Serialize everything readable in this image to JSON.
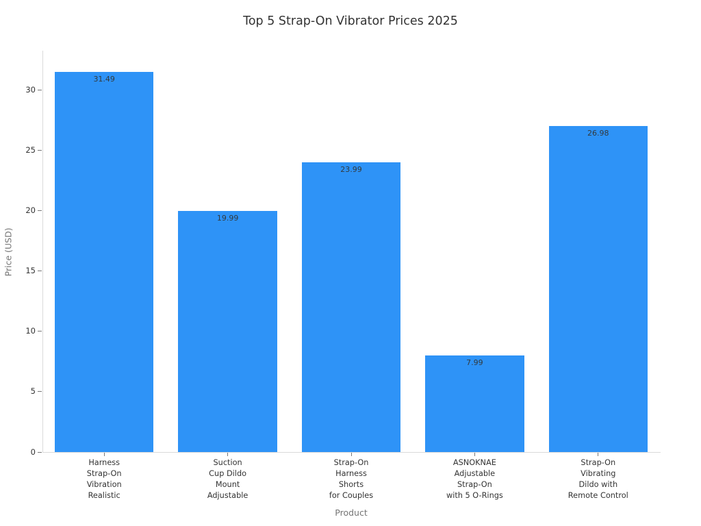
{
  "chart_data": {
    "type": "bar",
    "title": "Top 5 Strap-On Vibrator Prices 2025",
    "xlabel": "Product",
    "ylabel": "Price (USD)",
    "categories": [
      "Harness\nStrap-On\nVibration\nRealistic",
      "Suction\nCup Dildo\nMount\nAdjustable",
      "Strap-On\nHarness\nShorts\nfor Couples",
      "ASNOKNAE\nAdjustable\nStrap-On\nwith 5 O-Rings",
      "Strap-On\nVibrating\nDildo with\nRemote Control"
    ],
    "values": [
      31.49,
      19.99,
      23.99,
      7.99,
      26.98
    ],
    "value_labels": [
      "31.49",
      "19.99",
      "23.99",
      "7.99",
      "26.98"
    ],
    "yticks": [
      0,
      5,
      10,
      15,
      20,
      25,
      30
    ],
    "ylim": [
      0,
      33.18
    ],
    "bar_color": "#2e93f7",
    "grid": false,
    "legend": null,
    "background": "#ffffff"
  }
}
